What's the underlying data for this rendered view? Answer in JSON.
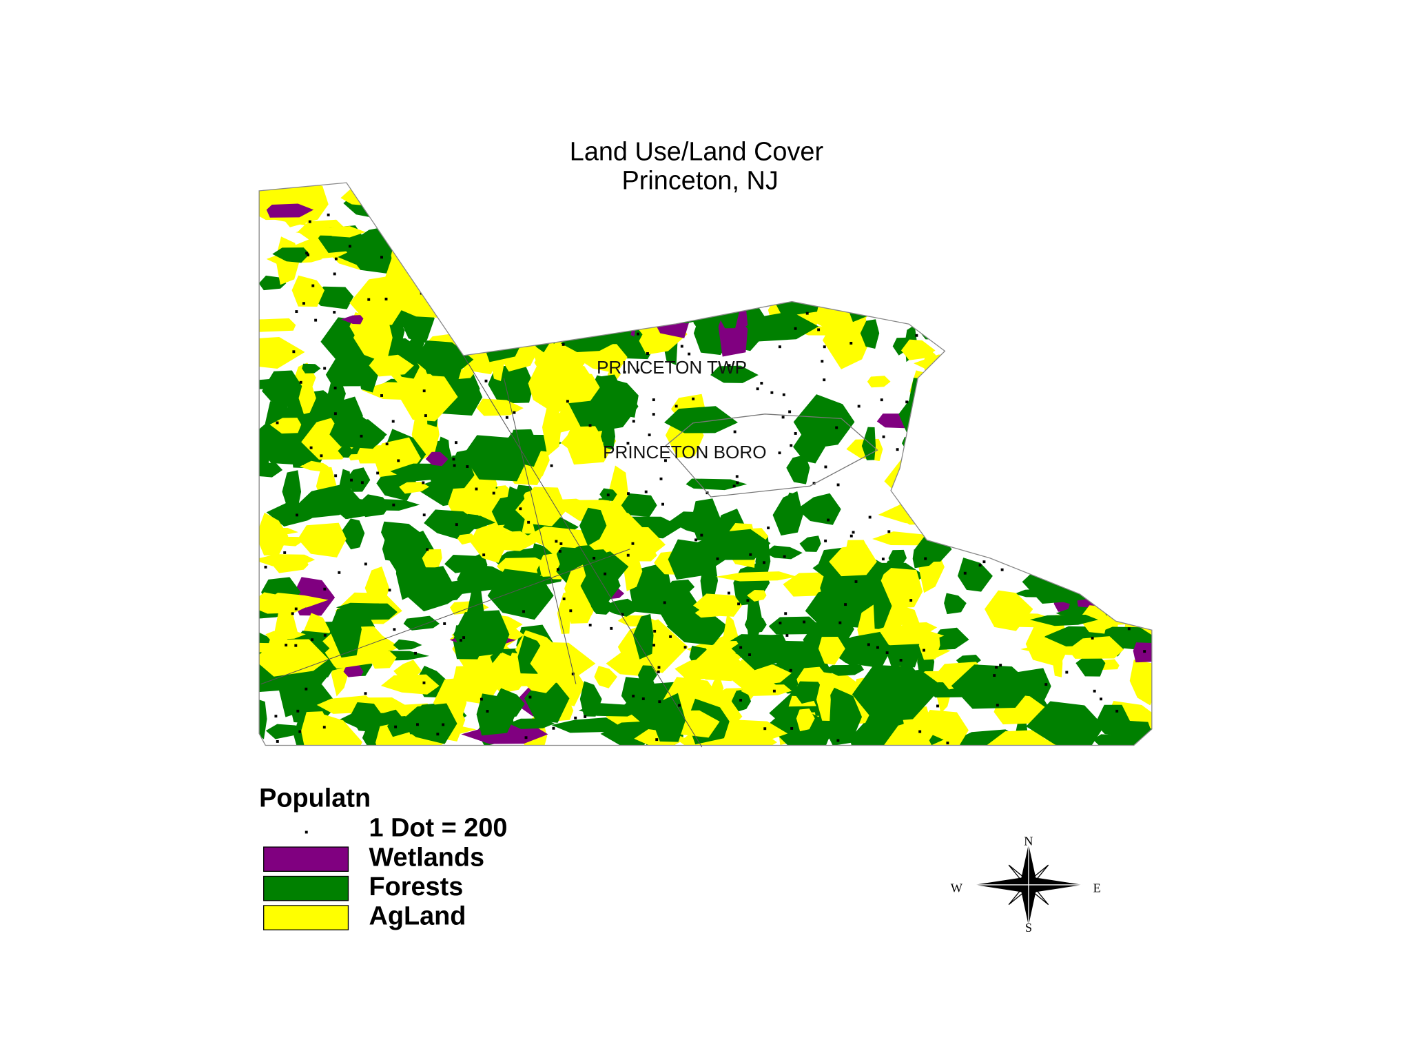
{
  "title": {
    "line1": "Land Use/Land Cover",
    "line2": "Princeton, NJ"
  },
  "map": {
    "labels": [
      "PRINCETON TWP",
      "PRINCETON BORO"
    ]
  },
  "legend": {
    "title": "Populatn",
    "dot_label": "1 Dot = 200",
    "items": [
      {
        "label": "Wetlands",
        "color": "#800080"
      },
      {
        "label": "Forests",
        "color": "#008000"
      },
      {
        "label": "AgLand",
        "color": "#ffff00"
      }
    ]
  },
  "compass": {
    "north": "N",
    "south": "S",
    "east": "E",
    "west": "W"
  }
}
